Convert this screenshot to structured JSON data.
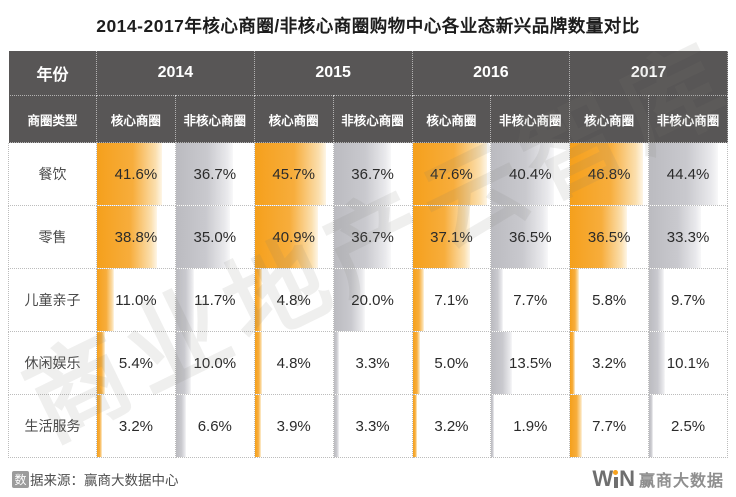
{
  "page": {
    "title": "2014-2017年核心商圈/非核心商圈购物中心各业态新兴品牌数量对比",
    "watermark": "商业地产云智库"
  },
  "table": {
    "year_header_label": "年份",
    "type_header_label": "商圈类型",
    "years": [
      "2014",
      "2015",
      "2016",
      "2017"
    ],
    "subheaders": [
      "核心商圈",
      "非核心商圈"
    ]
  },
  "chart_data": {
    "type": "table",
    "title": "2014-2017年核心商圈/非核心商圈购物中心各业态新兴品牌数量对比",
    "unit": "%",
    "column_groups": [
      "2014",
      "2015",
      "2016",
      "2017"
    ],
    "subcolumns": [
      "核心商圈",
      "非核心商圈"
    ],
    "categories": [
      "餐饮",
      "零售",
      "儿童亲子",
      "休闲娱乐",
      "生活服务"
    ],
    "rows": [
      {
        "category": "餐饮",
        "values": [
          41.6,
          36.7,
          45.7,
          36.7,
          47.6,
          40.4,
          46.8,
          44.4
        ]
      },
      {
        "category": "零售",
        "values": [
          38.8,
          35.0,
          40.9,
          36.7,
          37.1,
          36.5,
          36.5,
          33.3
        ]
      },
      {
        "category": "儿童亲子",
        "values": [
          11.0,
          11.7,
          4.8,
          20.0,
          7.1,
          7.7,
          5.8,
          9.7
        ]
      },
      {
        "category": "休闲娱乐",
        "values": [
          5.4,
          10.0,
          4.8,
          3.3,
          5.0,
          13.5,
          3.2,
          10.1
        ]
      },
      {
        "category": "生活服务",
        "values": [
          3.2,
          6.6,
          3.9,
          3.3,
          3.2,
          1.9,
          7.7,
          2.5
        ]
      }
    ],
    "bar_scale_max_percent": 50,
    "colors": {
      "header_bg": "#585656",
      "core_bar": "#F5A01C",
      "noncore_bar": "#BDBDC2",
      "accent_orange": "#F6A21E"
    }
  },
  "footer": {
    "source_icon_char": "数",
    "source_rest": "据来源：赢商大数据中心",
    "logo": {
      "w": "W",
      "n": "N",
      "cn": "赢商大数据",
      "dot_color": "#F6A21E"
    }
  }
}
